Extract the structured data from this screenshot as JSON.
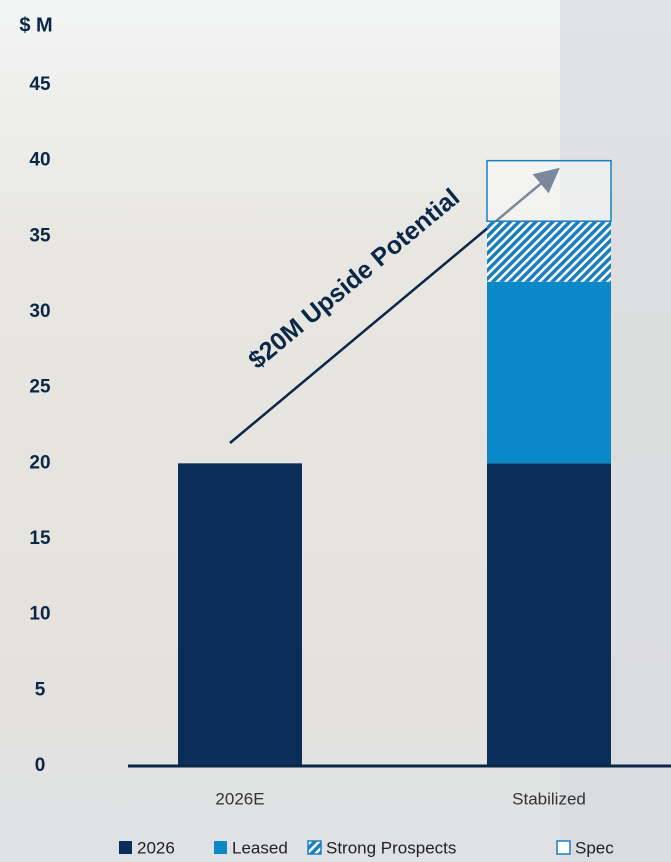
{
  "chart_data": {
    "type": "stacked_bar",
    "y_label": "$ M",
    "annotation": "$20M Upside Potential",
    "categories": [
      "2026E",
      "Stabilized"
    ],
    "series": [
      {
        "name": "2026",
        "color": "#0a2d5a",
        "pattern": "solid",
        "values": [
          20,
          20
        ]
      },
      {
        "name": "Leased",
        "color": "#0a88c8",
        "pattern": "solid",
        "values": [
          null,
          12
        ]
      },
      {
        "name": "Strong Prospects",
        "color": "#1a7fbf",
        "pattern": "hatch",
        "values": [
          null,
          4
        ]
      },
      {
        "name": "Spec",
        "color": "#1a7fbf",
        "pattern": "outline",
        "values": [
          null,
          4
        ]
      }
    ],
    "ylim": [
      0,
      45
    ],
    "yticks": [
      0,
      5,
      10,
      15,
      20,
      25,
      30,
      35,
      40,
      45
    ]
  }
}
